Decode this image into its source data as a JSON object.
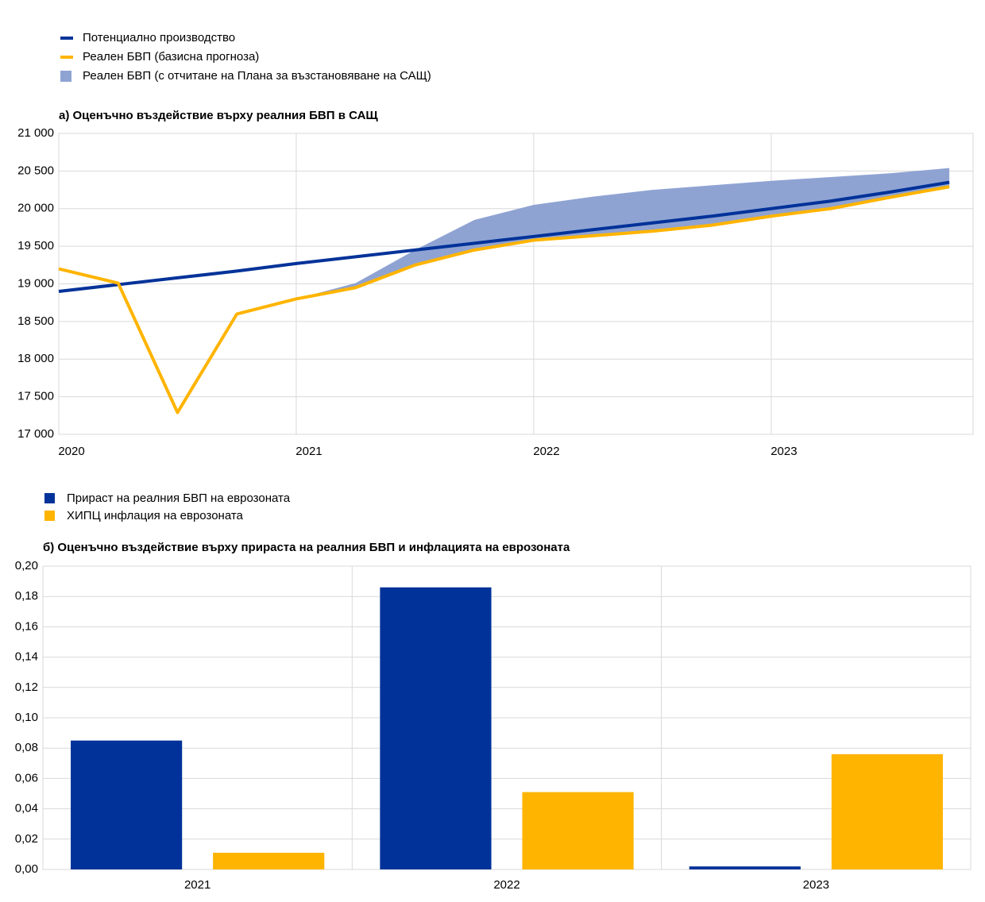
{
  "chart_data": [
    {
      "type": "line",
      "title": "а) Оценъчно въздействие върху реалния БВП в САЩ",
      "x": [
        2020,
        2020.25,
        2020.5,
        2020.75,
        2021,
        2021.25,
        2021.5,
        2021.75,
        2022,
        2022.25,
        2022.5,
        2022.75,
        2023,
        2023.25,
        2023.5,
        2023.75
      ],
      "xlim": [
        2020,
        2023.85
      ],
      "xticks": [
        2020,
        2021,
        2022,
        2023
      ],
      "ylim": [
        17000,
        21000
      ],
      "yticks": [
        {
          "value": 17000,
          "label": "17 000"
        },
        {
          "value": 17500,
          "label": "17 500"
        },
        {
          "value": 18000,
          "label": "18 000"
        },
        {
          "value": 18500,
          "label": "18 500"
        },
        {
          "value": 19000,
          "label": "19 000"
        },
        {
          "value": 19500,
          "label": "19 500"
        },
        {
          "value": 20000,
          "label": "20 000"
        },
        {
          "value": 20500,
          "label": "20 500"
        },
        {
          "value": 21000,
          "label": "21 000"
        }
      ],
      "grid": true,
      "series": [
        {
          "name": "Потенциално производство",
          "color": "#003299",
          "values": [
            18900,
            18990,
            19080,
            19170,
            19270,
            19360,
            19450,
            19540,
            19630,
            19720,
            19810,
            19900,
            20000,
            20100,
            20220,
            20350
          ]
        },
        {
          "name": "Реален БВП (базисна прогноза)",
          "color": "#ffb400",
          "values": [
            19200,
            19010,
            17290,
            18600,
            18800,
            18950,
            19250,
            19450,
            19580,
            19640,
            19700,
            19780,
            19900,
            20000,
            20150,
            20290
          ]
        },
        {
          "name": "Реален БВП (с отчитане на Плана за възстановяване на САЩ)",
          "color": "#8fa3d3",
          "values": [
            null,
            null,
            null,
            null,
            18800,
            19010,
            19450,
            19850,
            20050,
            20160,
            20250,
            20310,
            20370,
            20420,
            20470,
            20540
          ]
        }
      ]
    },
    {
      "type": "bar",
      "title": "б) Оценъчно въздействие върху прираста на реалния БВП и инфлацията на еврозоната",
      "categories": [
        "2021",
        "2022",
        "2023"
      ],
      "ylim": [
        0,
        0.2
      ],
      "yticks": [
        {
          "value": 0,
          "label": "0,00"
        },
        {
          "value": 0.02,
          "label": "0,02"
        },
        {
          "value": 0.04,
          "label": "0,04"
        },
        {
          "value": 0.06,
          "label": "0,06"
        },
        {
          "value": 0.08,
          "label": "0,08"
        },
        {
          "value": 0.1,
          "label": "0,10"
        },
        {
          "value": 0.12,
          "label": "0,12"
        },
        {
          "value": 0.14,
          "label": "0,14"
        },
        {
          "value": 0.16,
          "label": "0,16"
        },
        {
          "value": 0.18,
          "label": "0,18"
        },
        {
          "value": 0.2,
          "label": "0,20"
        }
      ],
      "grid": true,
      "series": [
        {
          "name": "Прираст на реалния БВП на еврозоната",
          "color": "#003299",
          "values": [
            0.085,
            0.186,
            0.002
          ]
        },
        {
          "name": "ХИПЦ инфлация на еврозоната",
          "color": "#ffb400",
          "values": [
            0.011,
            0.051,
            0.076
          ]
        }
      ]
    }
  ]
}
